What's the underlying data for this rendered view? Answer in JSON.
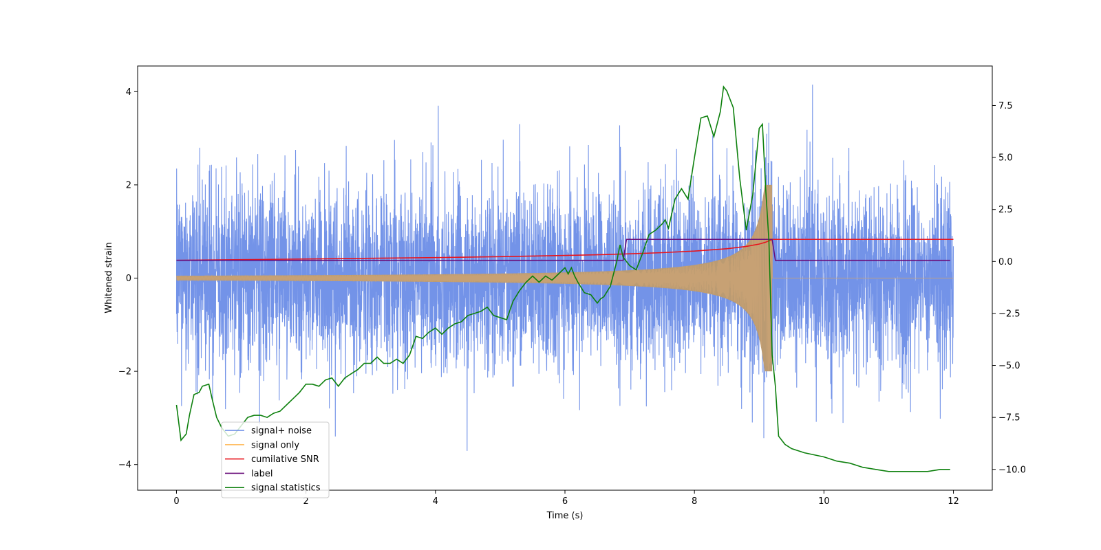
{
  "chart_data": {
    "type": "line",
    "title": "",
    "xlabel": "Time (s)",
    "ylabel": "Whitened strain",
    "ylabel_right": "",
    "xlim": [
      -0.6,
      12.6
    ],
    "ylim_left": [
      -4.55,
      4.55
    ],
    "ylim_right": [
      -11.0,
      9.4
    ],
    "x_ticks": [
      0,
      2,
      4,
      6,
      8,
      10,
      12
    ],
    "x_tick_labels": [
      "0",
      "2",
      "4",
      "6",
      "8",
      "10",
      "12"
    ],
    "y_ticks_left": [
      -4,
      -2,
      0,
      2,
      4
    ],
    "y_tick_labels_left": [
      "−4",
      "−2",
      "0",
      "2",
      "4"
    ],
    "y_ticks_right": [
      -10,
      -7.5,
      -5,
      -2.5,
      0,
      2.5,
      5,
      7.5
    ],
    "y_tick_labels_right": [
      "−10.0",
      "−7.5",
      "−5.0",
      "−2.5",
      "0.0",
      "2.5",
      "5.0",
      "7.5"
    ],
    "legend_position": "lower-left",
    "series": [
      {
        "name": "signal+ noise",
        "axis": "left",
        "color": "#6487e5",
        "kind": "noise",
        "t_range": [
          0,
          12
        ],
        "std": 0.95,
        "chirp_end": 9.2
      },
      {
        "name": "signal only",
        "axis": "left",
        "color": "#ffbf66",
        "kind": "chirp",
        "t_range": [
          0,
          12
        ],
        "base_amplitude": 0.05,
        "peak_amplitude": 2.0,
        "chirp_end": 9.2
      },
      {
        "name": "cumilative SNR",
        "axis": "left",
        "color": "#e8141c",
        "kind": "line",
        "x": [
          0,
          1,
          2,
          3,
          4,
          5,
          6,
          6.5,
          7,
          7.5,
          8,
          8.5,
          8.8,
          9.0,
          9.1,
          9.2,
          9.3,
          12
        ],
        "y": [
          0.38,
          0.395,
          0.41,
          0.425,
          0.44,
          0.46,
          0.485,
          0.5,
          0.52,
          0.545,
          0.58,
          0.63,
          0.68,
          0.73,
          0.77,
          0.83,
          0.83,
          0.83
        ]
      },
      {
        "name": "label",
        "axis": "left",
        "color": "#6a0e7a",
        "kind": "line",
        "x": [
          0,
          6.9,
          6.95,
          9.2,
          9.25,
          11.95
        ],
        "y": [
          0.38,
          0.38,
          0.83,
          0.83,
          0.38,
          0.38
        ]
      },
      {
        "name": "signal statistics",
        "axis": "right",
        "color": "#0d800d",
        "kind": "line",
        "x": [
          0,
          0.07,
          0.15,
          0.2,
          0.27,
          0.35,
          0.4,
          0.5,
          0.55,
          0.62,
          0.7,
          0.8,
          0.9,
          1.0,
          1.1,
          1.2,
          1.3,
          1.4,
          1.5,
          1.6,
          1.7,
          1.8,
          1.9,
          2.0,
          2.1,
          2.2,
          2.3,
          2.4,
          2.5,
          2.6,
          2.7,
          2.8,
          2.9,
          3.0,
          3.1,
          3.2,
          3.3,
          3.4,
          3.5,
          3.6,
          3.7,
          3.8,
          3.9,
          4.0,
          4.1,
          4.2,
          4.3,
          4.4,
          4.5,
          4.6,
          4.7,
          4.8,
          4.9,
          5.0,
          5.1,
          5.2,
          5.3,
          5.4,
          5.5,
          5.6,
          5.7,
          5.8,
          5.9,
          6.0,
          6.05,
          6.1,
          6.15,
          6.2,
          6.3,
          6.4,
          6.5,
          6.55,
          6.6,
          6.7,
          6.8,
          6.85,
          6.9,
          7.0,
          7.1,
          7.2,
          7.3,
          7.4,
          7.5,
          7.55,
          7.6,
          7.7,
          7.8,
          7.9,
          8.0,
          8.1,
          8.2,
          8.3,
          8.4,
          8.45,
          8.5,
          8.6,
          8.7,
          8.8,
          8.9,
          9.0,
          9.05,
          9.1,
          9.15,
          9.2,
          9.25,
          9.3,
          9.4,
          9.5,
          9.7,
          10.0,
          10.2,
          10.4,
          10.6,
          10.8,
          11.0,
          11.2,
          11.4,
          11.6,
          11.8,
          11.95
        ],
        "y": [
          -6.9,
          -8.6,
          -8.3,
          -7.4,
          -6.4,
          -6.3,
          -6.0,
          -5.9,
          -6.6,
          -7.5,
          -8.0,
          -8.4,
          -8.3,
          -7.9,
          -7.5,
          -7.4,
          -7.4,
          -7.5,
          -7.3,
          -7.2,
          -6.9,
          -6.6,
          -6.3,
          -5.9,
          -5.9,
          -6.0,
          -5.7,
          -5.6,
          -6.0,
          -5.6,
          -5.4,
          -5.2,
          -4.9,
          -4.9,
          -4.6,
          -4.9,
          -4.9,
          -4.7,
          -4.9,
          -4.5,
          -3.6,
          -3.7,
          -3.4,
          -3.2,
          -3.5,
          -3.2,
          -3.0,
          -2.9,
          -2.6,
          -2.5,
          -2.4,
          -2.2,
          -2.6,
          -2.7,
          -2.8,
          -1.9,
          -1.4,
          -1.0,
          -0.7,
          -1.0,
          -0.7,
          -0.9,
          -0.6,
          -0.3,
          -0.6,
          -0.3,
          -0.7,
          -1.0,
          -1.5,
          -1.6,
          -2.0,
          -1.8,
          -1.7,
          -1.2,
          0.0,
          0.8,
          0.2,
          -0.2,
          -0.4,
          0.4,
          1.3,
          1.5,
          1.8,
          2.0,
          1.6,
          3.0,
          3.5,
          3.0,
          5.0,
          6.9,
          7.0,
          6.0,
          7.2,
          8.4,
          8.2,
          7.4,
          4.0,
          1.5,
          3.2,
          6.4,
          6.6,
          3.5,
          1.0,
          -4.5,
          -6.0,
          -8.4,
          -8.8,
          -9.0,
          -9.2,
          -9.4,
          -9.6,
          -9.7,
          -9.9,
          -10.0,
          -10.1,
          -10.1,
          -10.1,
          -10.1,
          -10.0,
          -10.0
        ]
      }
    ]
  }
}
